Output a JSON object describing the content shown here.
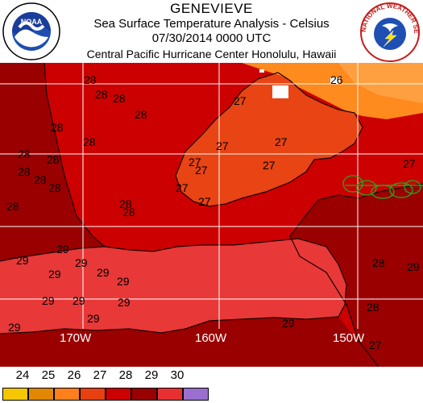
{
  "header": {
    "storm_name": "GENEVIEVE",
    "product_title": "Sea Surface Temperature Analysis - Celsius",
    "datetime": "07/30/2014 0000 UTC",
    "center": "Central Pacific Hurricane Center  Honolulu, Hawaii"
  },
  "logos": {
    "left_text": "NOAA",
    "right_text": "NATIONAL WEATHER SERVICE"
  },
  "map": {
    "longitude_labels": [
      "170W",
      "160W",
      "150W"
    ],
    "isotherm_labels": [
      "26",
      "27",
      "28",
      "29"
    ]
  },
  "legend": {
    "labels": [
      "24",
      "25",
      "26",
      "27",
      "28",
      "29",
      "30"
    ],
    "colors": [
      "#f6c700",
      "#e28800",
      "#ff7f1a",
      "#e84010",
      "#cc0000",
      "#990000",
      "#e83030",
      "#9a6fd0"
    ]
  },
  "colors": {
    "sst_26": "#ff8a1e",
    "sst_27": "#e84414",
    "sst_28": "#cc0000",
    "sst_29_dark": "#9a0000",
    "sst_29_light": "#e83838",
    "land": "#ffffff",
    "grid": "#ffffff",
    "storm_track": "#22aa22"
  }
}
